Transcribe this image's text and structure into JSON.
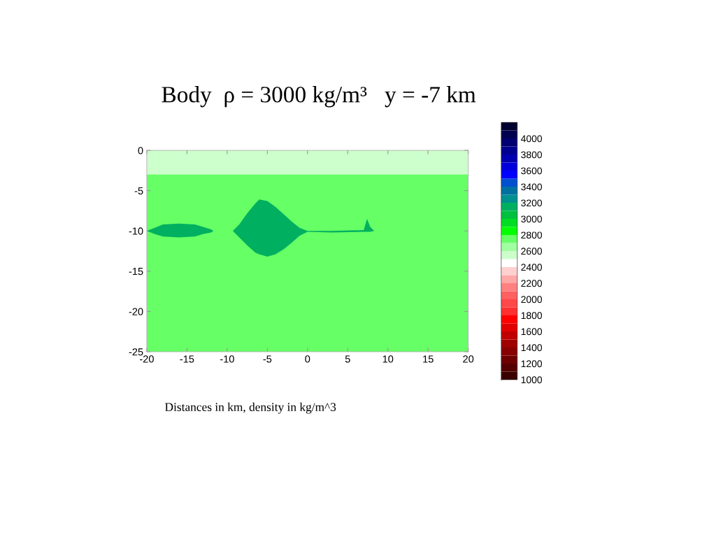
{
  "chart_data": {
    "type": "area",
    "title": "Body  ρ = 3000 kg/m³   y = -7 km",
    "annotations": [
      "Distances in km, density in kg/m^3"
    ],
    "xlim": [
      -20,
      20
    ],
    "xticks": [
      -20,
      -15,
      -10,
      -5,
      0,
      5,
      10,
      15,
      20
    ],
    "ylim": [
      -25,
      0
    ],
    "yticks": [
      -25,
      -20,
      -15,
      -10,
      -5,
      0
    ],
    "bands": [
      {
        "axis": "y",
        "from": -3,
        "to": 0,
        "color": "#ccffcc"
      },
      {
        "axis": "y",
        "from": -25,
        "to": -3,
        "color": "#66ff66"
      }
    ],
    "series": [
      {
        "color": "#00b060",
        "x": [
          -20,
          -19,
          -18,
          -16,
          -14,
          -13,
          -12,
          -11.7,
          -12,
          -13,
          -14,
          -16,
          -18,
          -19
        ],
        "values": [
          -10,
          -9.6,
          -9.2,
          -9.1,
          -9.2,
          -9.5,
          -9.8,
          -10,
          -10.2,
          -10.4,
          -10.7,
          -10.8,
          -10.7,
          -10.4
        ]
      },
      {
        "color": "#00b060",
        "x": [
          -9.3,
          -8.5,
          -7.5,
          -6.5,
          -6,
          -5,
          -4,
          -3,
          -2,
          -1,
          0,
          3,
          7,
          7.4,
          7.8,
          8.3,
          7.8,
          7.4,
          3,
          0,
          -1,
          -2,
          -3,
          -4,
          -5,
          -6,
          -6.5,
          -7.5,
          -8.5
        ],
        "values": [
          -10,
          -9.2,
          -7.8,
          -6.6,
          -6.1,
          -6.3,
          -7,
          -7.9,
          -8.8,
          -9.6,
          -10,
          -10,
          -9.9,
          -8.5,
          -9.5,
          -10,
          -10.1,
          -10.1,
          -10.2,
          -10.1,
          -10.6,
          -11.5,
          -12.3,
          -12.9,
          -13.2,
          -12.9,
          -12.7,
          -11.8,
          -10.8
        ]
      }
    ],
    "clim": [
      1000,
      4200
    ],
    "cticks": [
      1000,
      1200,
      1400,
      1600,
      1800,
      2000,
      2200,
      2400,
      2600,
      2800,
      3000,
      3200,
      3400,
      3600,
      3800,
      4000
    ],
    "colors": [
      "#3a0000",
      "#550000",
      "#6e0000",
      "#880000",
      "#a00000",
      "#c00000",
      "#e00000",
      "#ff0000",
      "#ff3030",
      "#ff4848",
      "#ff6060",
      "#ff8080",
      "#ffa8a8",
      "#ffd0d0",
      "#ffffff",
      "#ccffcc",
      "#a0ffa0",
      "#66ff66",
      "#00ff00",
      "#00dd22",
      "#00c040",
      "#00b060",
      "#009090",
      "#0070a0",
      "#0050d0",
      "#0000ff",
      "#0000dd",
      "#0000b0",
      "#000090",
      "#000070",
      "#000050",
      "#000030"
    ],
    "grid": false
  }
}
